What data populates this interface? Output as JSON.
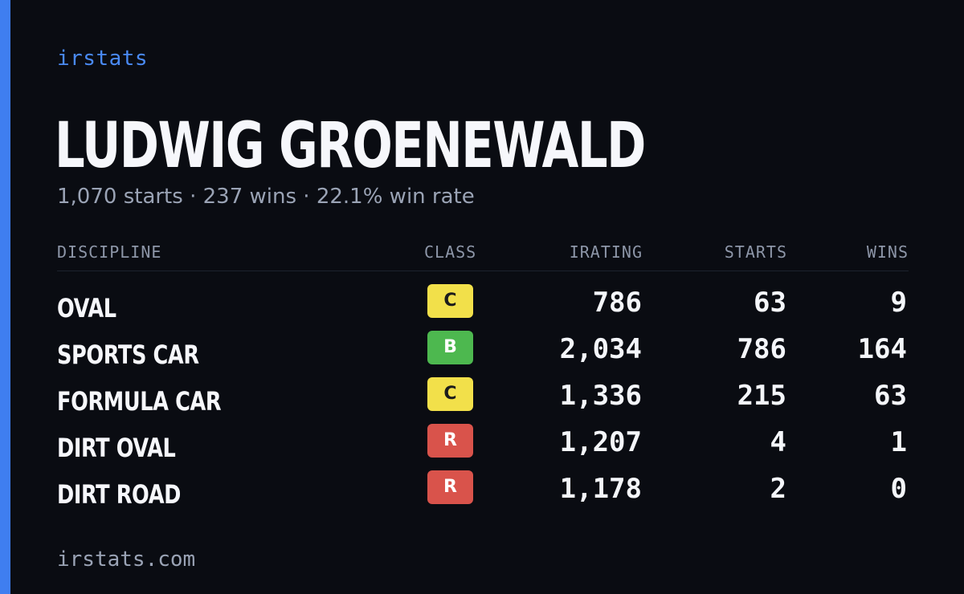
{
  "brand": "irstats",
  "driver": {
    "name": "LUDWIG GROENEWALD"
  },
  "summary": {
    "starts": "1,070 starts",
    "wins": "237 wins",
    "win_rate": "22.1% win rate",
    "separator": "·"
  },
  "table": {
    "headers": {
      "discipline": "DISCIPLINE",
      "class": "CLASS",
      "irating": "IRATING",
      "starts": "STARTS",
      "wins": "WINS"
    },
    "rows": [
      {
        "discipline": "OVAL",
        "class": "C",
        "irating": "786",
        "starts": "63",
        "wins": "9"
      },
      {
        "discipline": "SPORTS CAR",
        "class": "B",
        "irating": "2,034",
        "starts": "786",
        "wins": "164"
      },
      {
        "discipline": "FORMULA CAR",
        "class": "C",
        "irating": "1,336",
        "starts": "215",
        "wins": "63"
      },
      {
        "discipline": "DIRT OVAL",
        "class": "R",
        "irating": "1,207",
        "starts": "4",
        "wins": "1"
      },
      {
        "discipline": "DIRT ROAD",
        "class": "R",
        "irating": "1,178",
        "starts": "2",
        "wins": "0"
      }
    ]
  },
  "class_colors": {
    "C": {
      "bg": "#f2e04a",
      "fg": "#1c1c1c"
    },
    "B": {
      "bg": "#4db84f",
      "fg": "#ffffff"
    },
    "R": {
      "bg": "#d9534b",
      "fg": "#ffffff"
    }
  },
  "colors": {
    "accent": "#3f7ef0",
    "background": "#0a0c12"
  },
  "footer": "irstats.com"
}
